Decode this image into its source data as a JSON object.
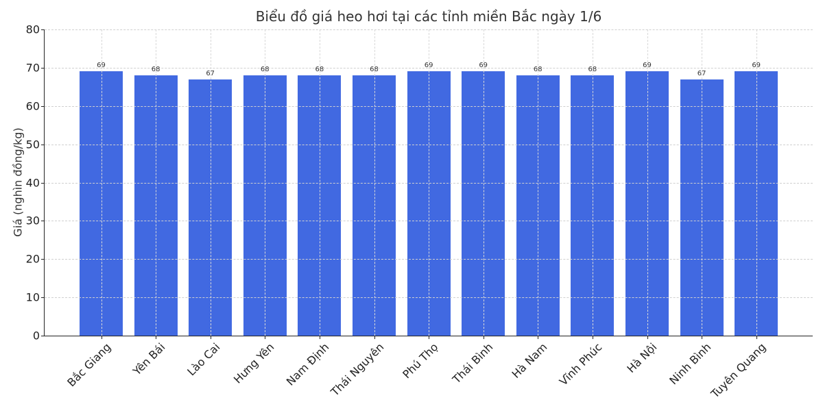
{
  "chart_data": {
    "type": "bar",
    "title": "Biểu đồ giá heo hơi tại các tỉnh miền Bắc ngày 1/6",
    "xlabel": "",
    "ylabel": "Giá (nghìn đồng/kg)",
    "categories": [
      "Bắc Giang",
      "Yên Bái",
      "Lào Cai",
      "Hưng Yên",
      "Nam Định",
      "Thái Nguyên",
      "Phú Thọ",
      "Thái Bình",
      "Hà Nam",
      "Vĩnh Phúc",
      "Hà Nội",
      "Ninh Bình",
      "Tuyên Quang"
    ],
    "values": [
      69,
      68,
      67,
      68,
      68,
      68,
      69,
      69,
      68,
      68,
      69,
      67,
      69
    ],
    "data_labels": [
      "69",
      "68",
      "67",
      "68",
      "68",
      "68",
      "69",
      "69",
      "68",
      "68",
      "69",
      "67",
      "69"
    ],
    "ylim": [
      0,
      80
    ],
    "yticks": [
      0,
      10,
      20,
      30,
      40,
      50,
      60,
      70,
      80
    ],
    "ytick_labels": [
      "0",
      "10",
      "20",
      "30",
      "40",
      "50",
      "60",
      "70",
      "80"
    ],
    "grid": true,
    "legend": null,
    "bar_color": "#4169E1",
    "xtick_rotation": 45
  }
}
